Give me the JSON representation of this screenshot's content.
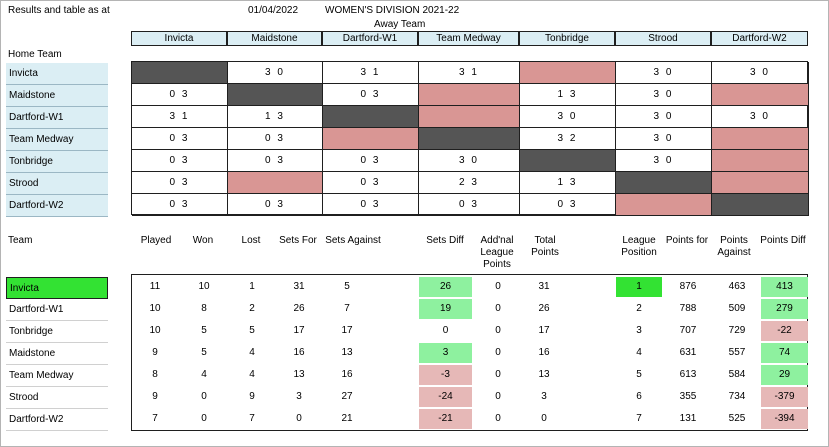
{
  "header": {
    "caption": "Results and table as at",
    "date": "01/04/2022",
    "division": "WOMEN'S DIVISION 2021-22",
    "away_label": "Away Team",
    "home_label": "Home Team"
  },
  "teams_columns": [
    "Invicta",
    "Maidstone",
    "Dartford-W1",
    "Team Medway",
    "Tonbridge",
    "Strood",
    "Dartford-W2"
  ],
  "results": {
    "home_teams": [
      "Invicta",
      "Maidstone",
      "Dartford-W1",
      "Team Medway",
      "Tonbridge",
      "Strood",
      "Dartford-W2"
    ],
    "rows": [
      [
        "",
        "3 0",
        "3 1",
        "3 1",
        "",
        "3 0",
        "3 0"
      ],
      [
        "0 3",
        "",
        "0 3",
        "",
        "1 3",
        "3 0",
        ""
      ],
      [
        "3 1",
        "1 3",
        "",
        "",
        "3 0",
        "3 0",
        "3 0"
      ],
      [
        "0 3",
        "0 3",
        "",
        "",
        "3 2",
        "3 0",
        ""
      ],
      [
        "0 3",
        "0 3",
        "0 3",
        "3 0",
        "",
        "3 0",
        ""
      ],
      [
        "0 3",
        "",
        "0 3",
        "2 3",
        "1 3",
        "",
        ""
      ],
      [
        "0 3",
        "0 3",
        "0 3",
        "0 3",
        "0 3",
        "",
        ""
      ]
    ],
    "states": [
      [
        "dark",
        "",
        "",
        "",
        "pink",
        "",
        ""
      ],
      [
        "",
        "dark",
        "",
        "pink",
        "",
        "",
        "pink"
      ],
      [
        "",
        "",
        "dark",
        "pink",
        "",
        "",
        ""
      ],
      [
        "",
        "",
        "pink",
        "dark",
        "",
        "",
        "pink"
      ],
      [
        "",
        "",
        "",
        "",
        "dark",
        "",
        "pink"
      ],
      [
        "",
        "pink",
        "",
        "",
        "",
        "dark",
        "pink"
      ],
      [
        "",
        "",
        "",
        "",
        "",
        "pink",
        "dark"
      ]
    ]
  },
  "league": {
    "team_label": "Team",
    "columns": [
      "Played",
      "Won",
      "Lost",
      "Sets For",
      "Sets Against",
      "Sets Diff",
      "Add'nal League Points",
      "Total Points",
      "League Position",
      "Points for",
      "Points Against",
      "Points Diff"
    ],
    "rows": [
      {
        "team": "Invicta",
        "played": "11",
        "won": "10",
        "lost": "1",
        "sets_for": "31",
        "sets_against": "5",
        "sets_diff": "26",
        "addnl": "0",
        "total": "31",
        "position": "1",
        "points_for": "876",
        "points_against": "463",
        "points_diff": "413"
      },
      {
        "team": "Dartford-W1",
        "played": "10",
        "won": "8",
        "lost": "2",
        "sets_for": "26",
        "sets_against": "7",
        "sets_diff": "19",
        "addnl": "0",
        "total": "26",
        "position": "2",
        "points_for": "788",
        "points_against": "509",
        "points_diff": "279"
      },
      {
        "team": "Tonbridge",
        "played": "10",
        "won": "5",
        "lost": "5",
        "sets_for": "17",
        "sets_against": "17",
        "sets_diff": "0",
        "addnl": "0",
        "total": "17",
        "position": "3",
        "points_for": "707",
        "points_against": "729",
        "points_diff": "-22"
      },
      {
        "team": "Maidstone",
        "played": "9",
        "won": "5",
        "lost": "4",
        "sets_for": "16",
        "sets_against": "13",
        "sets_diff": "3",
        "addnl": "0",
        "total": "16",
        "position": "4",
        "points_for": "631",
        "points_against": "557",
        "points_diff": "74"
      },
      {
        "team": "Team Medway",
        "played": "8",
        "won": "4",
        "lost": "4",
        "sets_for": "13",
        "sets_against": "16",
        "sets_diff": "-3",
        "addnl": "0",
        "total": "13",
        "position": "5",
        "points_for": "613",
        "points_against": "584",
        "points_diff": "29"
      },
      {
        "team": "Strood",
        "played": "9",
        "won": "0",
        "lost": "9",
        "sets_for": "3",
        "sets_against": "27",
        "sets_diff": "-24",
        "addnl": "0",
        "total": "3",
        "position": "6",
        "points_for": "355",
        "points_against": "734",
        "points_diff": "-379"
      },
      {
        "team": "Dartford-W2",
        "played": "7",
        "won": "0",
        "lost": "7",
        "sets_for": "0",
        "sets_against": "21",
        "sets_diff": "-21",
        "addnl": "0",
        "total": "0",
        "position": "7",
        "points_for": "131",
        "points_against": "525",
        "points_diff": "-394"
      }
    ],
    "highlights": {
      "sets_diff": [
        "green",
        "green",
        "",
        "green",
        "pink",
        "pink",
        "pink"
      ],
      "position": [
        "lime",
        "",
        "",
        "",
        "",
        "",
        ""
      ],
      "points_diff": [
        "green",
        "green",
        "pink",
        "green",
        "green",
        "pink",
        "pink"
      ]
    }
  },
  "colors": {
    "header_blue": "#dbeef4",
    "dark_cell": "#555555",
    "pink_cell": "#d99694",
    "light_pink": "#e6b8b7",
    "green": "#8ef19f",
    "lime": "#33e233"
  }
}
